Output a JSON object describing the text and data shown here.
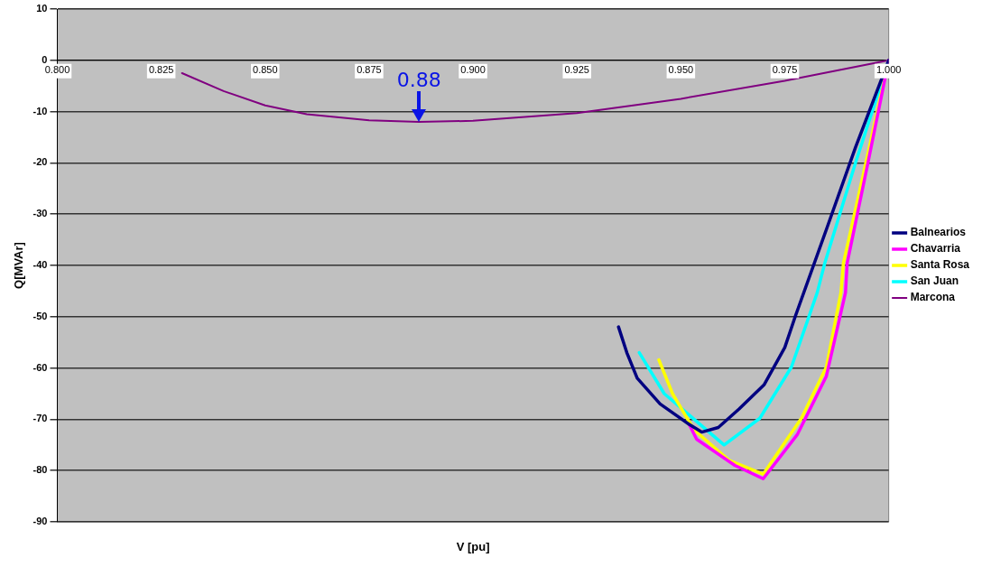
{
  "chart_data": {
    "type": "line",
    "xlabel": "V [pu]",
    "ylabel": "Q[MVAr]",
    "xlim": [
      0.8,
      1.0
    ],
    "xticks": [
      {
        "value": 0.8,
        "label": "0.800"
      },
      {
        "value": 0.825,
        "label": "0.825"
      },
      {
        "value": 0.85,
        "label": "0.850"
      },
      {
        "value": 0.875,
        "label": "0.875"
      },
      {
        "value": 0.9,
        "label": "0.900"
      },
      {
        "value": 0.925,
        "label": "0.925"
      },
      {
        "value": 0.95,
        "label": "0.950"
      },
      {
        "value": 0.975,
        "label": "0.975"
      },
      {
        "value": 1.0,
        "label": "1.000"
      }
    ],
    "ylim": [
      -90,
      10
    ],
    "yticks": [
      -90,
      -80,
      -70,
      -60,
      -50,
      -40,
      -30,
      -20,
      -10,
      0,
      10
    ],
    "grid": "y",
    "legend": "right",
    "marker": "none",
    "line_style": "solid",
    "series": [
      {
        "name": "Balnearios",
        "color": "#000080",
        "x": [
          0.935,
          0.937,
          0.9395,
          0.945,
          0.952,
          0.955,
          0.959,
          0.964,
          0.97,
          0.975,
          0.9775,
          0.985,
          0.992,
          1.0
        ],
        "values": [
          -52,
          -57,
          -62,
          -67,
          -71,
          -72.5,
          -71.6,
          -68,
          -63.3,
          -56,
          -50,
          -33,
          -17,
          0
        ]
      },
      {
        "name": "Chavarria",
        "color": "#ff00ff",
        "x": [
          0.952,
          0.9538,
          0.963,
          0.9698,
          0.978,
          0.985,
          0.9896,
          0.99,
          0.995,
          1.0
        ],
        "values": [
          -71,
          -73.9,
          -79,
          -81.6,
          -73,
          -61.6,
          -45.3,
          -39.6,
          -20,
          0
        ]
      },
      {
        "name": "Santa Rosa",
        "color": "#ffff00",
        "x": [
          0.9447,
          0.948,
          0.9531,
          0.9616,
          0.9698,
          0.979,
          0.985,
          0.9885,
          0.9891,
          1.0
        ],
        "values": [
          -58.4,
          -65,
          -72,
          -78,
          -80.7,
          -69.8,
          -59.8,
          -45.3,
          -39.6,
          0
        ]
      },
      {
        "name": "San Juan",
        "color": "#00ffff",
        "x": [
          0.94,
          0.946,
          0.9604,
          0.969,
          0.9766,
          0.9828,
          0.9846,
          0.992,
          1.0
        ],
        "values": [
          -57,
          -65,
          -75,
          -69.8,
          -59.8,
          -45.3,
          -39.6,
          -20,
          0
        ]
      },
      {
        "name": "Marcona",
        "color": "#800080",
        "x": [
          0.83,
          0.84,
          0.85,
          0.86,
          0.875,
          0.887,
          0.9,
          0.925,
          0.95,
          0.975,
          1.0
        ],
        "values": [
          -2.5,
          -6,
          -8.8,
          -10.5,
          -11.7,
          -12,
          -11.8,
          -10.3,
          -7.5,
          -4,
          0
        ]
      }
    ],
    "annotations": [
      {
        "text": "0.88",
        "x": 0.887,
        "y": -12
      }
    ]
  }
}
